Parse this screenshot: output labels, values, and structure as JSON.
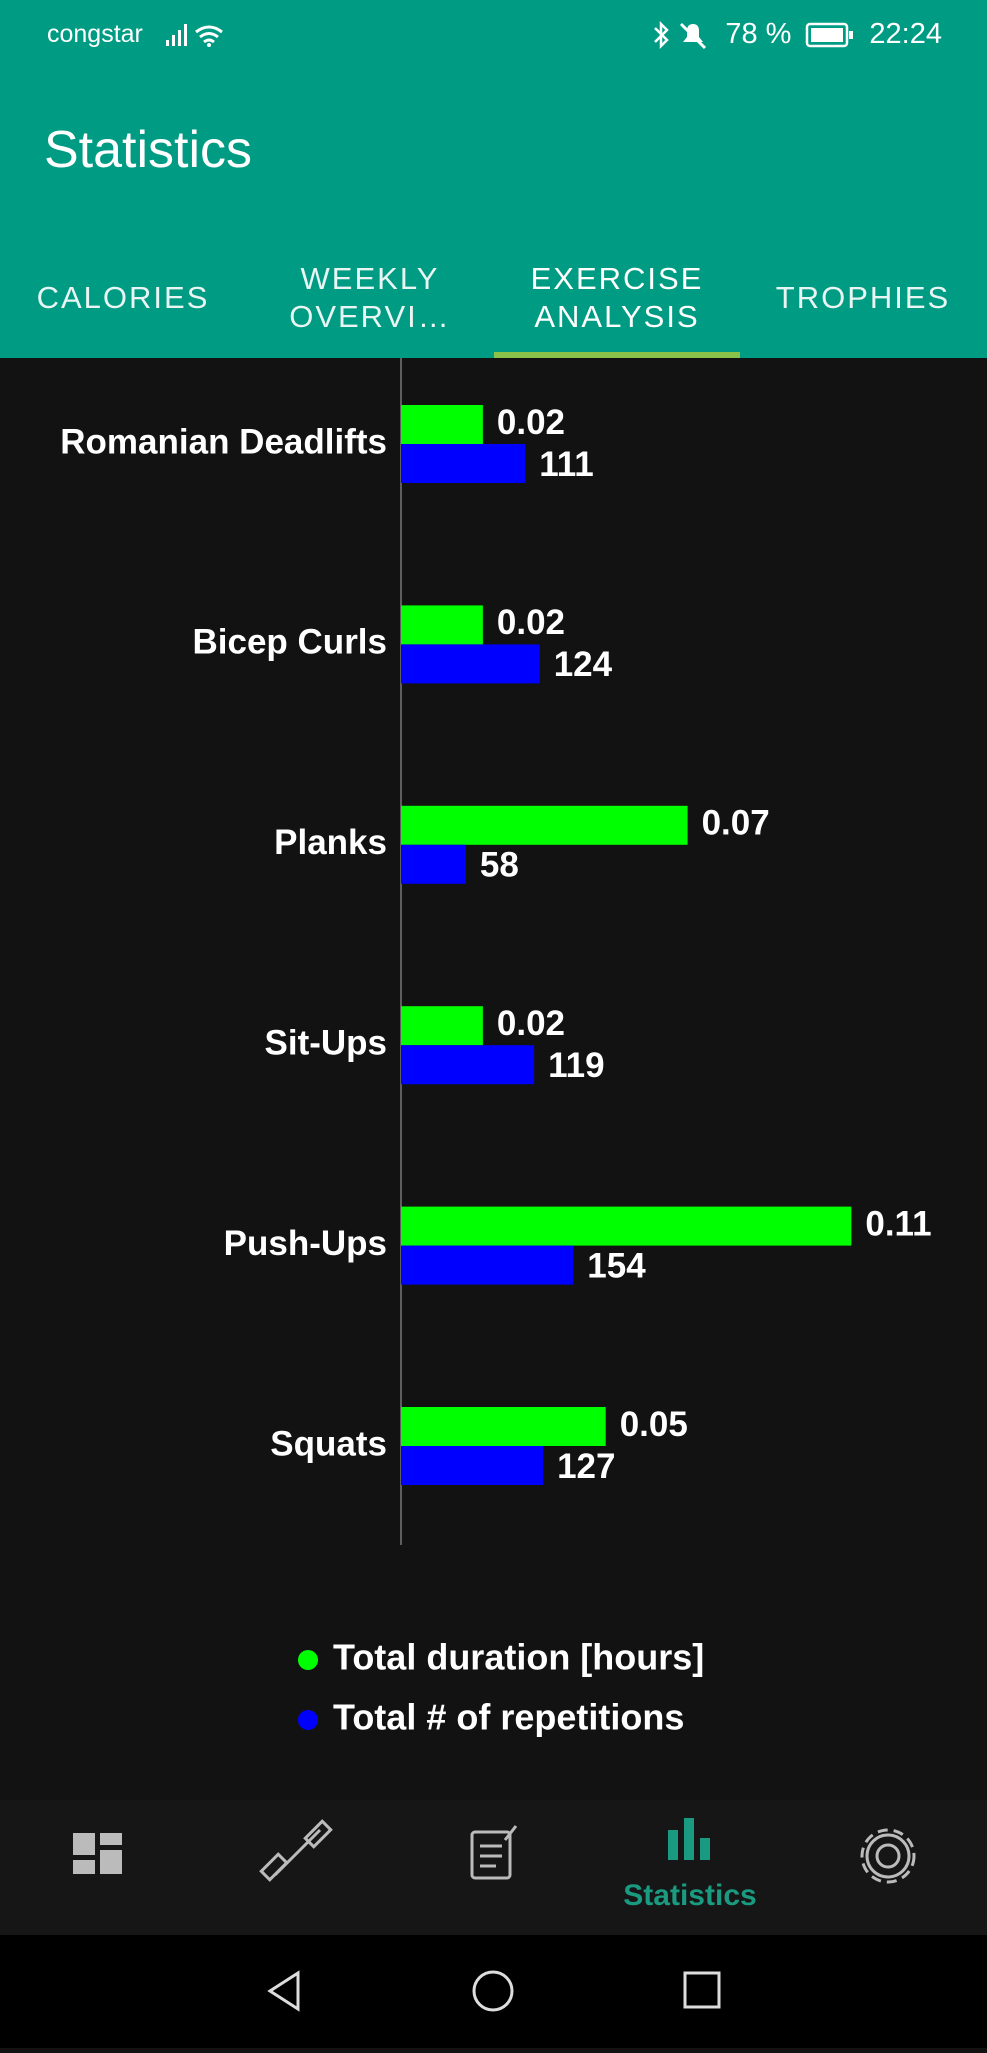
{
  "status_bar": {
    "carrier": "congstar",
    "battery": "78 %",
    "time": "22:24"
  },
  "app_bar": {
    "title": "Statistics"
  },
  "tabs": [
    "CALORIES",
    "WEEKLY OVERVI…",
    "EXERCISE ANALYSIS",
    "TROPHIES"
  ],
  "chart_data": {
    "type": "bar",
    "orientation": "horizontal",
    "categories": [
      "Romanian Deadlifts",
      "Bicep Curls",
      "Planks",
      "Sit-Ups",
      "Push-Ups",
      "Squats"
    ],
    "series": [
      {
        "name": "Total duration [hours]",
        "color": "#00ff00",
        "values": [
          0.02,
          0.02,
          0.07,
          0.02,
          0.11,
          0.05
        ]
      },
      {
        "name": "Total # of repetitions",
        "color": "#0000ff",
        "axis": "x2",
        "values": [
          111,
          124,
          58,
          119,
          154,
          127
        ]
      }
    ],
    "xlim": [
      0,
      0.138
    ],
    "x2lim": [
      0,
      505
    ],
    "grid": false
  },
  "bottom_nav": {
    "active_label": "Statistics"
  }
}
